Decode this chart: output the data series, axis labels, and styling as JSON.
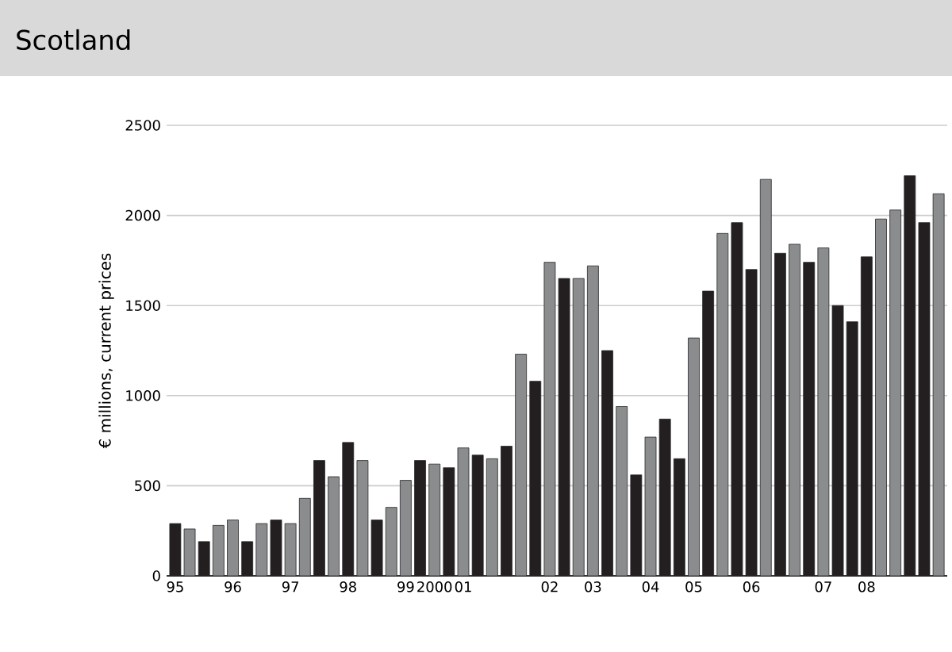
{
  "chart_data": {
    "type": "bar",
    "title": "Scotland",
    "ylabel": "€ millions, current prices",
    "categories": [
      "95",
      null,
      null,
      null,
      "96",
      null,
      null,
      null,
      "97",
      null,
      null,
      null,
      "98",
      null,
      null,
      null,
      "99",
      null,
      "2000",
      null,
      "01",
      null,
      null,
      null,
      null,
      null,
      "02",
      null,
      null,
      "03",
      null,
      null,
      null,
      "04",
      null,
      null,
      "05",
      null,
      null,
      null,
      "06",
      null,
      null,
      null,
      null,
      "07",
      null,
      null,
      "08",
      null,
      null,
      null,
      null,
      null
    ],
    "values": [
      290,
      260,
      190,
      280,
      310,
      190,
      290,
      310,
      290,
      430,
      640,
      550,
      740,
      640,
      310,
      380,
      530,
      640,
      620,
      600,
      710,
      670,
      650,
      720,
      1230,
      1080,
      1740,
      1650,
      1650,
      1720,
      1250,
      940,
      560,
      770,
      870,
      650,
      1320,
      1580,
      1900,
      1960,
      1700,
      2200,
      1790,
      1840,
      1740,
      1820,
      1500,
      1410,
      1770,
      1980,
      2030,
      2220,
      1960,
      2120
    ],
    "colors": [
      "#231f20",
      "#8a8c8e",
      "#231f20",
      "#8a8c8e",
      "#8a8c8e",
      "#231f20",
      "#8a8c8e",
      "#231f20",
      "#8a8c8e",
      "#8a8c8e",
      "#231f20",
      "#8a8c8e",
      "#231f20",
      "#8a8c8e",
      "#231f20",
      "#8a8c8e",
      "#8a8c8e",
      "#231f20",
      "#8a8c8e",
      "#231f20",
      "#8a8c8e",
      "#231f20",
      "#8a8c8e",
      "#231f20",
      "#8a8c8e",
      "#231f20",
      "#8a8c8e",
      "#231f20",
      "#8a8c8e",
      "#8a8c8e",
      "#231f20",
      "#8a8c8e",
      "#231f20",
      "#8a8c8e",
      "#231f20",
      "#231f20",
      "#8a8c8e",
      "#231f20",
      "#8a8c8e",
      "#231f20",
      "#231f20",
      "#8a8c8e",
      "#231f20",
      "#8a8c8e",
      "#231f20",
      "#8a8c8e",
      "#231f20",
      "#231f20",
      "#231f20",
      "#8a8c8e",
      "#8a8c8e",
      "#231f20",
      "#231f20",
      "#8a8c8e"
    ],
    "ylim": [
      0,
      2500
    ],
    "yticks": [
      0,
      500,
      1000,
      1500,
      2000,
      2500
    ],
    "grid": "y"
  }
}
